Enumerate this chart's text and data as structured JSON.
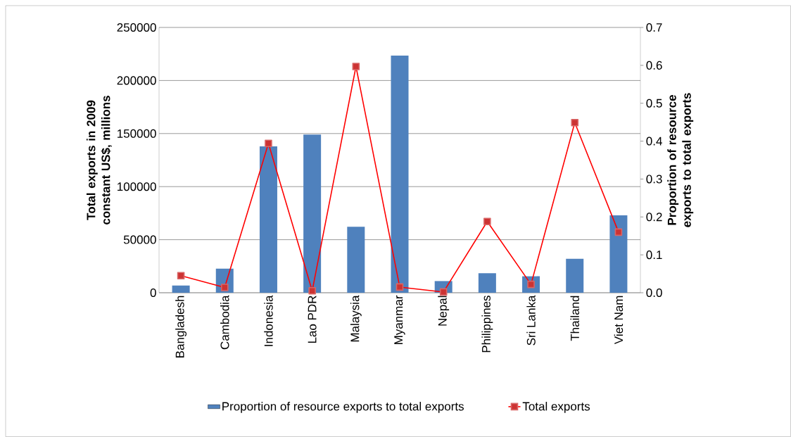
{
  "chart_data": {
    "type": "bar",
    "ylabel": "Total exports in 2009 constant US$, millions",
    "y2label": "Proportion of resource exports to total exports",
    "categories": [
      "Bangladesh",
      "Cambodia",
      "Indonesia",
      "Lao PDR",
      "Malaysia",
      "Myanmar",
      "Nepal",
      "Philippines",
      "Sri Lanka",
      "Thailand",
      "Viet Nam"
    ],
    "series": [
      {
        "name": "Proportion of resource exports to total exports",
        "color": "#4f81bd",
        "values": [
          6800,
          22700,
          138000,
          149000,
          62100,
          223500,
          11000,
          18400,
          15500,
          32000,
          73000
        ]
      },
      {
        "name": "Total exports",
        "type": "line",
        "axis": "y2",
        "color": "#ff0000",
        "marker": "square",
        "line_style": "solid",
        "values": [
          0.045,
          0.014,
          0.394,
          0.005,
          0.597,
          0.015,
          0.002,
          0.188,
          0.022,
          0.449,
          0.16
        ]
      }
    ],
    "ylim": [
      0,
      250000
    ],
    "yticks": [
      0,
      50000,
      100000,
      150000,
      200000,
      250000
    ],
    "y2lim": [
      0,
      0.7
    ],
    "y2ticks": [
      {
        "value": 0,
        "label": "0.0"
      },
      0.1,
      0.2,
      0.3,
      0.4,
      0.5,
      0.6,
      0.7
    ],
    "grid": "y",
    "legend": "bottom"
  }
}
